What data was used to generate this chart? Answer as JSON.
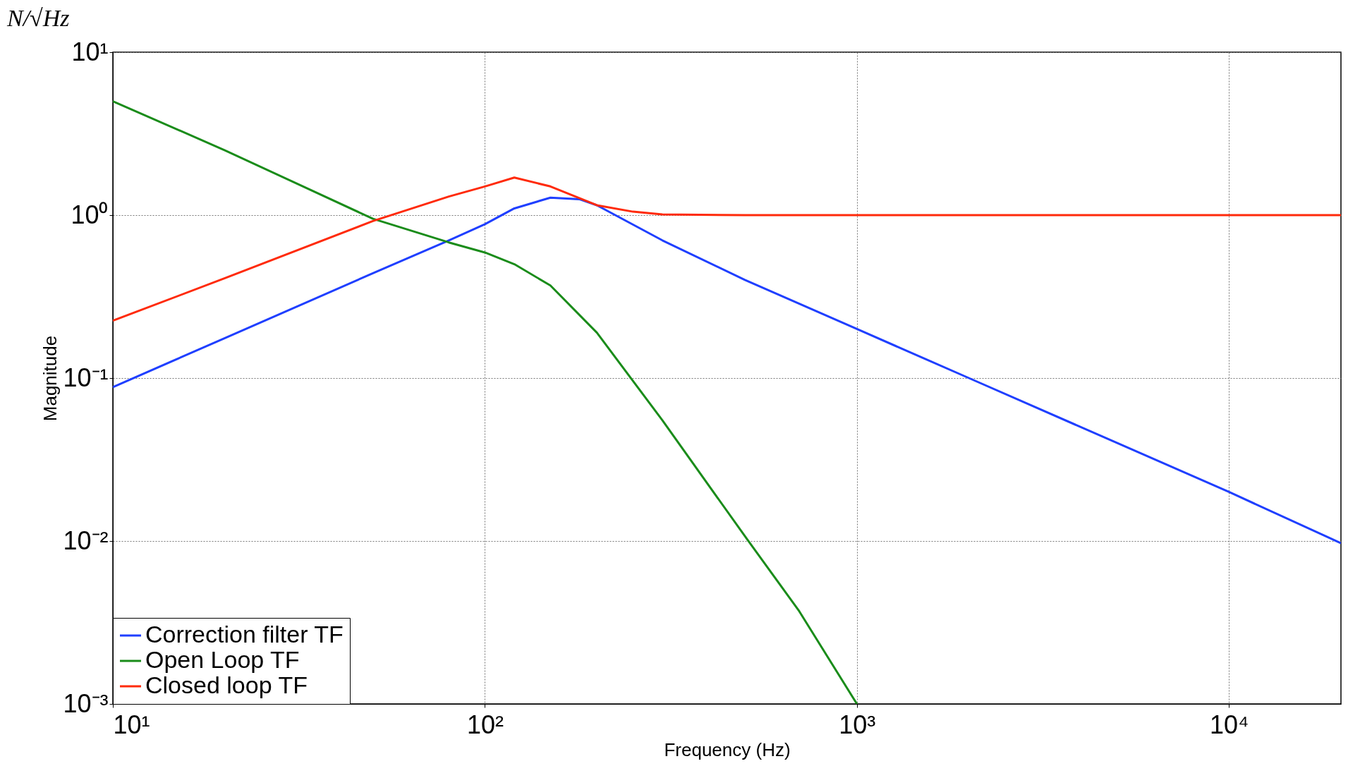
{
  "chart_data": {
    "type": "line",
    "xlabel": "Frequency (Hz)",
    "ylabel": "Magnitude",
    "annotations": [
      "N/√Hz"
    ],
    "log": "xy",
    "grid": true,
    "legend": "bottom left",
    "line_style": "solid",
    "marker": "none",
    "xlim": [
      10,
      20000
    ],
    "ylim": [
      0.001,
      10
    ],
    "xticks": [
      {
        "value": 10,
        "label": "10¹"
      },
      {
        "value": 100,
        "label": "10²"
      },
      {
        "value": 1000,
        "label": "10³"
      },
      {
        "value": 10000,
        "label": "10⁴"
      }
    ],
    "yticks": [
      {
        "value": 0.001,
        "label": "10⁻³"
      },
      {
        "value": 0.01,
        "label": "10⁻²"
      },
      {
        "value": 0.1,
        "label": "10⁻¹"
      },
      {
        "value": 1,
        "label": "10⁰"
      },
      {
        "value": 10,
        "label": "10¹"
      }
    ],
    "series": [
      {
        "name": "Correction filter TF",
        "color": "#1f3fff",
        "x": [
          10,
          20,
          50,
          80,
          100,
          120,
          150,
          180,
          200,
          300,
          500,
          1000,
          2000,
          5000,
          10000,
          20000
        ],
        "values": [
          0.088,
          0.176,
          0.44,
          0.7,
          0.88,
          1.1,
          1.28,
          1.25,
          1.15,
          0.7,
          0.4,
          0.2,
          0.1,
          0.04,
          0.02,
          0.0097
        ]
      },
      {
        "name": "Open Loop TF",
        "color": "#1a8c1a",
        "x": [
          10,
          20,
          50,
          80,
          100,
          120,
          150,
          200,
          300,
          500,
          700,
          1000
        ],
        "values": [
          5,
          2.5,
          0.95,
          0.68,
          0.59,
          0.5,
          0.37,
          0.19,
          0.055,
          0.0107,
          0.0037,
          0.001
        ]
      },
      {
        "name": "Closed loop TF",
        "color": "#ff2a0a",
        "x": [
          10,
          20,
          50,
          80,
          100,
          120,
          150,
          200,
          250,
          300,
          500,
          1000,
          5000,
          20000
        ],
        "values": [
          0.225,
          0.41,
          0.92,
          1.3,
          1.5,
          1.7,
          1.5,
          1.15,
          1.05,
          1.01,
          1.0,
          1.0,
          1.0,
          1.0
        ]
      }
    ]
  }
}
